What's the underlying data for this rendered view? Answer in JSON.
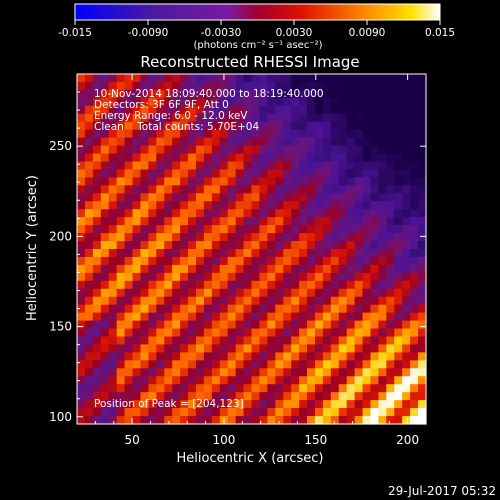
{
  "colorbar": {
    "ticks": [
      "-0.015",
      "-0.0090",
      "-0.0030",
      "0.0030",
      "0.0090",
      "0.015"
    ],
    "unit": "(photons cm⁻² s⁻¹ asec⁻²)",
    "range": [
      -0.015,
      0.015
    ]
  },
  "chart_data": {
    "type": "heatmap",
    "title": "Reconstructed RHESSI Image",
    "xlabel": "Heliocentric X (arcsec)",
    "ylabel": "Heliocentric Y (arcsec)",
    "xlim": [
      20,
      210
    ],
    "ylim": [
      96,
      290
    ],
    "xticks": [
      "50",
      "100",
      "150",
      "200"
    ],
    "yticks": [
      "100",
      "150",
      "200",
      "250"
    ],
    "annotations": [
      "10-Nov-2014 18:09:40.000 to 18:19:40.000",
      "Detectors: 3F 6F 9F, Att 0",
      "Energy Range: 6.0 - 12.0 keV",
      "Clean    Total counts: 5.70E+04"
    ],
    "peak_label": "Position of Peak = [204,123]",
    "peak": [
      204,
      123
    ],
    "pattern": "diagonal stripes, intensity increasing toward lower-right",
    "colors": [
      "#0000ff",
      "#4b0082",
      "#800080",
      "#ff0000",
      "#ff8c00",
      "#ffff00",
      "#ffffff"
    ]
  },
  "footer": {
    "timestamp": "29-Jul-2017 05:32"
  }
}
